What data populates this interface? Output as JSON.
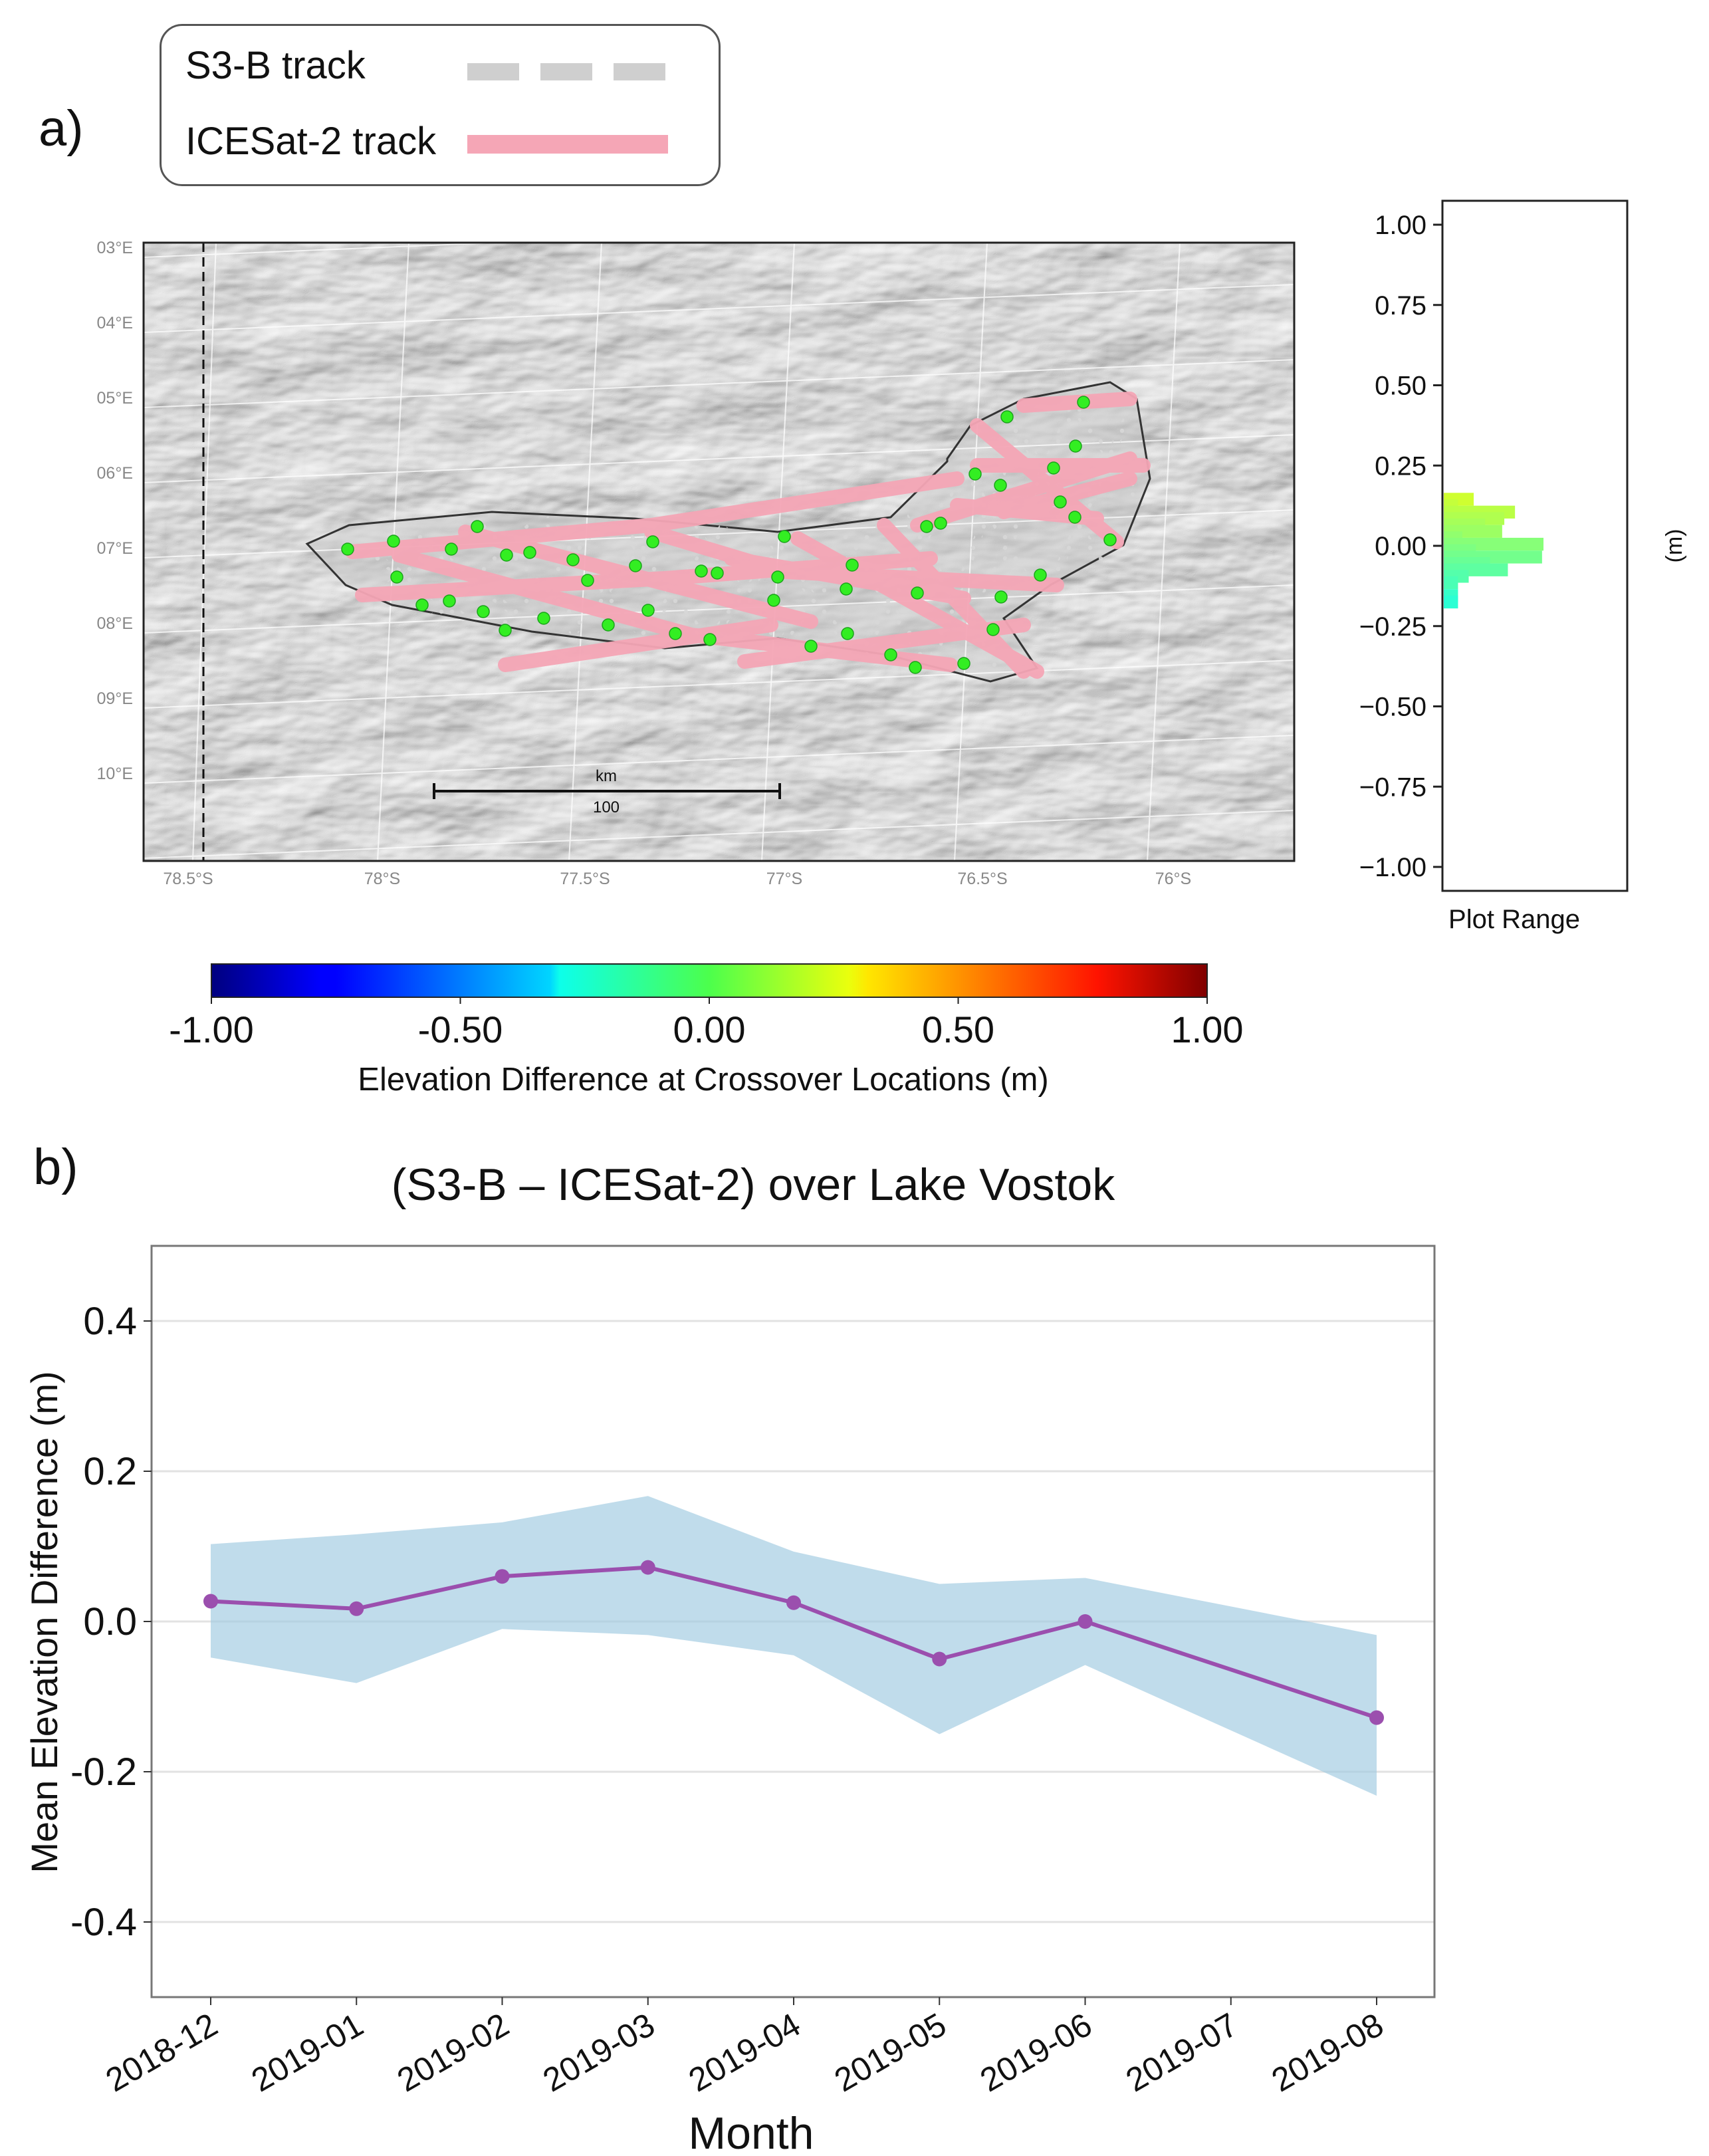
{
  "panels": {
    "a_label": "a)",
    "b_label": "b)"
  },
  "legend": {
    "items": [
      {
        "label": "S3-B track",
        "color": "#cfcfcf",
        "style": "dashed"
      },
      {
        "label": "ICESat-2 track",
        "color": "#f5a6b6",
        "style": "solid"
      }
    ]
  },
  "map": {
    "lat_ticks": [
      "78.5°S",
      "78°S",
      "77.5°S",
      "77°S",
      "76.5°S",
      "76°S"
    ],
    "lon_ticks": [
      "03°E",
      "04°E",
      "05°E",
      "06°E",
      "07°E",
      "08°E",
      "09°E",
      "10°E"
    ],
    "scale_bar": {
      "unit": "km",
      "length": "100"
    },
    "crossover_color": "#33ee22"
  },
  "histogram": {
    "title": "Plot Range",
    "unit_label": "(m)",
    "ylim": [
      -1.0,
      1.0
    ],
    "ticks": [
      "1.00",
      "0.75",
      "0.50",
      "0.25",
      "0.00",
      "−0.25",
      "−0.50",
      "−0.75",
      "−1.00"
    ],
    "tick_values": [
      1.0,
      0.75,
      0.5,
      0.25,
      0.0,
      -0.25,
      -0.5,
      -0.75,
      -1.0
    ],
    "bins": [
      {
        "v": 0.155,
        "c": 0.42
      },
      {
        "v": 0.135,
        "c": 0.2
      },
      {
        "v": 0.115,
        "c": 1.0
      },
      {
        "v": 0.095,
        "c": 0.85
      },
      {
        "v": 0.075,
        "c": 0.58
      },
      {
        "v": 0.055,
        "c": 0.82
      },
      {
        "v": 0.035,
        "c": 0.26
      },
      {
        "v": 0.015,
        "c": 1.4
      },
      {
        "v": -0.005,
        "c": 0.45
      },
      {
        "v": -0.025,
        "c": 1.38
      },
      {
        "v": -0.045,
        "c": 0.65
      },
      {
        "v": -0.065,
        "c": 0.9
      },
      {
        "v": -0.085,
        "c": 0.35
      },
      {
        "v": -0.105,
        "c": 0.2
      },
      {
        "v": -0.145,
        "c": 0.2
      },
      {
        "v": -0.165,
        "c": 0.2
      }
    ]
  },
  "colorbar": {
    "min": -1.0,
    "max": 1.0,
    "ticks": [
      "-1.00",
      "-0.50",
      "0.00",
      "0.50",
      "1.00"
    ],
    "tick_values": [
      -1.0,
      -0.5,
      0.0,
      0.5,
      1.0
    ],
    "label": "Elevation Difference at Crossover Locations (m)"
  },
  "chart_data": {
    "type": "line",
    "title": "(S3-B – ICESat-2) over Lake Vostok",
    "xlabel": "Month",
    "ylabel": "Mean Elevation Difference (m)",
    "ylim": [
      -0.5,
      0.5
    ],
    "yticks": [
      "0.4",
      "0.2",
      "0.0",
      "-0.2",
      "-0.4"
    ],
    "ytick_values": [
      0.4,
      0.2,
      0.0,
      -0.2,
      -0.4
    ],
    "categories": [
      "2018-12",
      "2019-01",
      "2019-02",
      "2019-03",
      "2019-04",
      "2019-05",
      "2019-06",
      "2019-07",
      "2019-08"
    ],
    "series": [
      {
        "name": "Mean elevation difference",
        "color": "#9b4fae",
        "x": [
          "2018-12",
          "2019-01",
          "2019-02",
          "2019-03",
          "2019-04",
          "2019-05",
          "2019-06",
          "2019-08"
        ],
        "values": [
          0.027,
          0.017,
          0.06,
          0.072,
          0.025,
          -0.05,
          0.0,
          -0.128
        ]
      }
    ],
    "band": {
      "color": "#9ecae1",
      "x": [
        "2018-12",
        "2019-01",
        "2019-02",
        "2019-03",
        "2019-04",
        "2019-05",
        "2019-06",
        "2019-08"
      ],
      "upper": [
        0.103,
        0.116,
        0.132,
        0.167,
        0.093,
        0.05,
        0.058,
        -0.018
      ],
      "lower": [
        -0.048,
        -0.082,
        -0.01,
        -0.018,
        -0.045,
        -0.15,
        -0.058,
        -0.232
      ]
    },
    "grid": true
  }
}
